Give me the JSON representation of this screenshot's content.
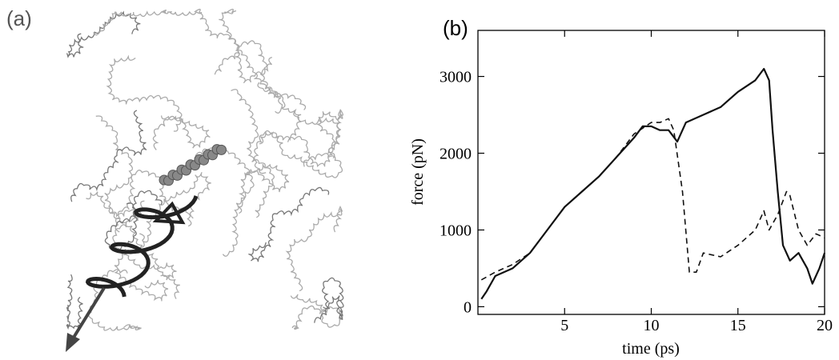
{
  "panel_a": {
    "label": "(a)"
  },
  "chart_data": {
    "type": "line",
    "panel_label": "(b)",
    "x_label": "time (ps)",
    "y_label": "force (pN)",
    "xlim": [
      0,
      20
    ],
    "xticks": [
      5,
      10,
      15,
      20
    ],
    "ylim": [
      -100,
      3600
    ],
    "yticks": [
      0,
      1000,
      2000,
      3000
    ],
    "series": [
      {
        "color": "#111111",
        "dash": "solid",
        "x": [
          0.2,
          0.5,
          1,
          2,
          3,
          4,
          5,
          6,
          7,
          8,
          9,
          9.5,
          10,
          10.5,
          11,
          11.5,
          12,
          13,
          14,
          15,
          16,
          16.5,
          16.8,
          17,
          17.3,
          17.6,
          18,
          18.5,
          19,
          19.3,
          19.7,
          20
        ],
        "values": [
          100,
          200,
          400,
          500,
          700,
          1000,
          1300,
          1500,
          1700,
          1950,
          2200,
          2350,
          2350,
          2300,
          2300,
          2150,
          2400,
          2500,
          2600,
          2800,
          2950,
          3100,
          2950,
          2300,
          1500,
          800,
          600,
          700,
          500,
          300,
          500,
          700
        ]
      },
      {
        "color": "#111111",
        "dash": "dashed",
        "x": [
          0.2,
          1,
          2,
          3,
          4,
          5,
          6,
          7,
          8,
          9,
          10,
          10.5,
          11,
          11.3,
          11.8,
          12.2,
          12.6,
          13,
          14,
          15,
          16,
          16.5,
          16.8,
          17.3,
          17.8,
          18,
          18.5,
          19,
          19.5,
          20
        ],
        "values": [
          350,
          450,
          550,
          700,
          1000,
          1300,
          1500,
          1700,
          1950,
          2250,
          2400,
          2400,
          2450,
          2300,
          1500,
          450,
          450,
          700,
          650,
          800,
          1000,
          1250,
          1000,
          1200,
          1500,
          1450,
          1000,
          800,
          950,
          900
        ]
      }
    ]
  }
}
